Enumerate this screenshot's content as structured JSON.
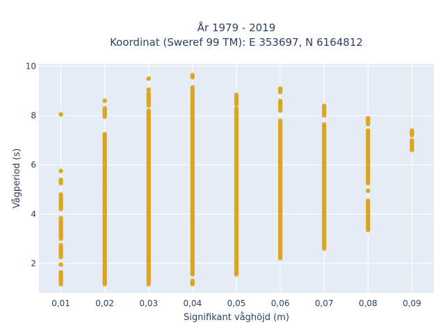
{
  "chart_data": {
    "type": "scatter",
    "title_lines": [
      "År 1979 - 2019",
      "Koordinat (Sweref 99 TM): E 353697, N 6164812"
    ],
    "xlabel": "Signifikant våghöjd (m)",
    "ylabel": "Vågperiod (s)",
    "x_ticks": [
      "0,01",
      "0,02",
      "0,03",
      "0,04",
      "0,05",
      "0,06",
      "0,07",
      "0,08",
      "0,09"
    ],
    "y_ticks": [
      "2",
      "4",
      "6",
      "8",
      "10"
    ],
    "xlim": [
      0.005,
      0.095
    ],
    "ylim": [
      0.8,
      10.1
    ],
    "grid": true,
    "colors": {
      "marker": "#DAA520",
      "plot_bg": "#E5ECF6",
      "grid": "#ffffff",
      "text": "#2a3f5f"
    },
    "columns": [
      {
        "x": 0.01,
        "segments": [
          [
            1.15,
            1.65
          ],
          [
            1.95,
            1.95
          ],
          [
            2.25,
            2.75
          ],
          [
            3.0,
            3.85
          ],
          [
            4.2,
            4.8
          ],
          [
            5.25,
            5.4
          ],
          [
            5.75,
            5.75
          ],
          [
            8.05,
            8.05
          ]
        ]
      },
      {
        "x": 0.02,
        "segments": [
          [
            1.15,
            7.25
          ],
          [
            7.95,
            8.3
          ],
          [
            8.6,
            8.6
          ]
        ]
      },
      {
        "x": 0.03,
        "segments": [
          [
            1.15,
            8.2
          ],
          [
            8.4,
            8.9
          ],
          [
            9.05,
            9.05
          ],
          [
            9.5,
            9.5
          ]
        ]
      },
      {
        "x": 0.04,
        "segments": [
          [
            1.15,
            1.3
          ],
          [
            1.55,
            9.15
          ],
          [
            9.55,
            9.65
          ]
        ]
      },
      {
        "x": 0.05,
        "segments": [
          [
            1.55,
            8.3
          ],
          [
            8.45,
            8.85
          ]
        ]
      },
      {
        "x": 0.06,
        "segments": [
          [
            2.2,
            7.8
          ],
          [
            8.2,
            8.6
          ],
          [
            8.95,
            9.1
          ]
        ]
      },
      {
        "x": 0.07,
        "segments": [
          [
            2.6,
            7.65
          ],
          [
            8.0,
            8.4
          ]
        ]
      },
      {
        "x": 0.08,
        "segments": [
          [
            3.35,
            4.55
          ],
          [
            4.95,
            4.95
          ],
          [
            5.25,
            7.4
          ],
          [
            7.65,
            7.9
          ]
        ]
      },
      {
        "x": 0.09,
        "segments": [
          [
            6.6,
            7.0
          ],
          [
            7.2,
            7.4
          ]
        ]
      }
    ]
  }
}
